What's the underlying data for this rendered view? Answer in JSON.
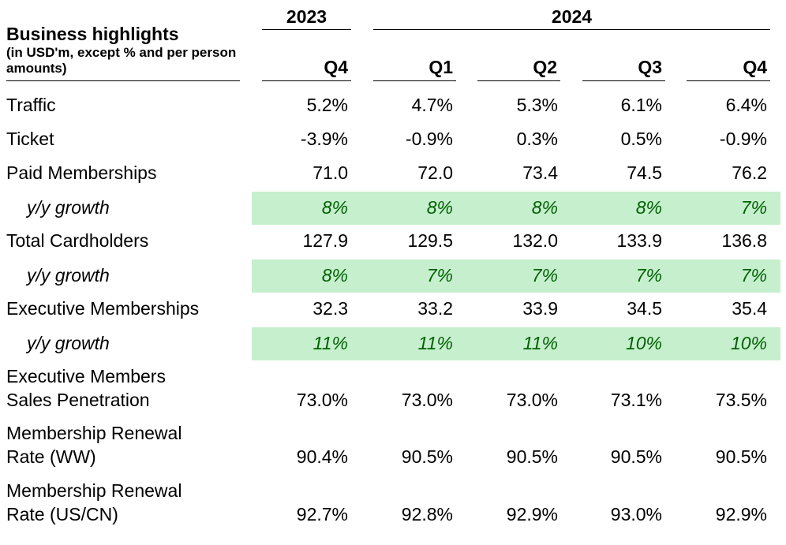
{
  "header": {
    "title": "Business highlights",
    "subtitle": "(in USD'm, except % and per person amounts)",
    "years": [
      "2023",
      "2024"
    ],
    "quarters": [
      "Q4",
      "Q1",
      "Q2",
      "Q3",
      "Q4"
    ]
  },
  "rows": [
    {
      "label": "Traffic",
      "values": [
        "5.2%",
        "4.7%",
        "5.3%",
        "6.1%",
        "6.4%"
      ]
    },
    {
      "label": "Ticket",
      "values": [
        "-3.9%",
        "-0.9%",
        "0.3%",
        "0.5%",
        "-0.9%"
      ]
    },
    {
      "label": "Paid Memberships",
      "values": [
        "71.0",
        "72.0",
        "73.4",
        "74.5",
        "76.2"
      ]
    },
    {
      "label": "y/y growth",
      "values": [
        "8%",
        "8%",
        "8%",
        "8%",
        "7%"
      ]
    },
    {
      "label": "Total Cardholders",
      "values": [
        "127.9",
        "129.5",
        "132.0",
        "133.9",
        "136.8"
      ]
    },
    {
      "label": "y/y growth",
      "values": [
        "8%",
        "7%",
        "7%",
        "7%",
        "7%"
      ]
    },
    {
      "label": "Executive Memberships",
      "values": [
        "32.3",
        "33.2",
        "33.9",
        "34.5",
        "35.4"
      ]
    },
    {
      "label": "y/y growth",
      "values": [
        "11%",
        "11%",
        "11%",
        "10%",
        "10%"
      ]
    },
    {
      "label_lines": [
        "Executive Members",
        "Sales Penetration"
      ],
      "values": [
        "73.0%",
        "73.0%",
        "73.0%",
        "73.1%",
        "73.5%"
      ]
    },
    {
      "label_lines": [
        "Membership Renewal",
        "Rate (WW)"
      ],
      "values": [
        "90.4%",
        "90.5%",
        "90.5%",
        "90.5%",
        "90.5%"
      ]
    },
    {
      "label_lines": [
        "Membership Renewal",
        "Rate (US/CN)"
      ],
      "values": [
        "92.7%",
        "92.8%",
        "92.9%",
        "93.0%",
        "92.9%"
      ]
    }
  ],
  "colors": {
    "growth_band": "#c6efce",
    "growth_text": "#006100"
  }
}
